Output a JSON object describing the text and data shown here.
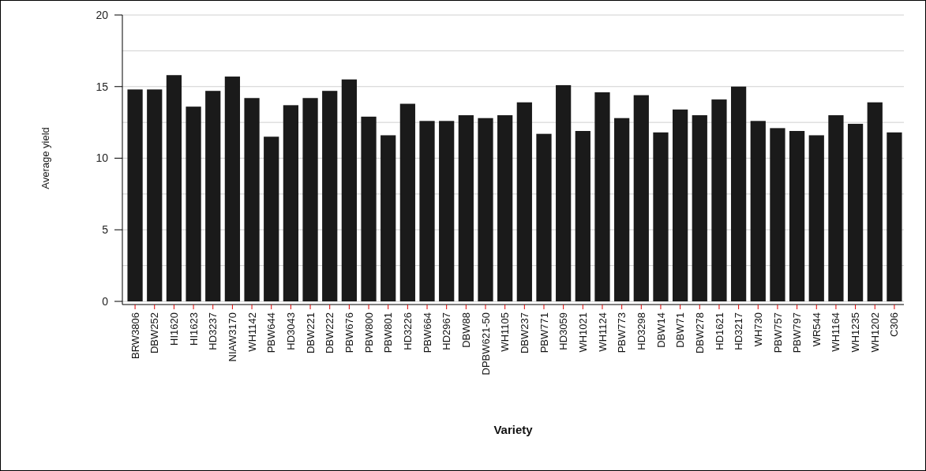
{
  "chart_data": {
    "type": "bar",
    "xlabel": "Variety",
    "ylabel": "Average yield",
    "categories": [
      "BRW3806",
      "DBW252",
      "HI1620",
      "HI1623",
      "HD3237",
      "NIAW3170",
      "WH1142",
      "PBW644",
      "HD3043",
      "DBW221",
      "DBW222",
      "PBW676",
      "PBW800",
      "PBW801",
      "HD3226",
      "PBW664",
      "HD2967",
      "DBW88",
      "DPBW621-50",
      "WH1105",
      "DBW237",
      "PBW771",
      "HD3059",
      "WH1021",
      "WH1124",
      "PBW773",
      "HD3298",
      "DBW14",
      "DBW71",
      "DBW278",
      "HD1621",
      "HD3217",
      "WH730",
      "PBW757",
      "PBW797",
      "WR544",
      "WH1164",
      "WH1235",
      "WH1202",
      "C306"
    ],
    "values": [
      14.8,
      14.8,
      15.8,
      13.6,
      14.7,
      15.7,
      14.2,
      11.5,
      13.7,
      14.2,
      14.7,
      15.5,
      12.9,
      11.6,
      13.8,
      12.6,
      12.6,
      13.0,
      12.8,
      13.0,
      13.9,
      11.7,
      15.1,
      11.9,
      14.6,
      12.8,
      14.4,
      11.8,
      13.4,
      13.0,
      14.1,
      15.0,
      12.6,
      12.1,
      11.9,
      11.6,
      13.0,
      12.4,
      13.9,
      11.8
    ],
    "color": "#1a1a1a",
    "ylim": [
      0,
      20
    ],
    "yticks": [
      0,
      {
        "value": 2.5,
        "label": null
      },
      5,
      {
        "value": 7.5,
        "label": null
      },
      10,
      {
        "value": 12.5,
        "label": null
      },
      15,
      {
        "value": 17.5,
        "label": null
      },
      20
    ],
    "grid": "y"
  }
}
